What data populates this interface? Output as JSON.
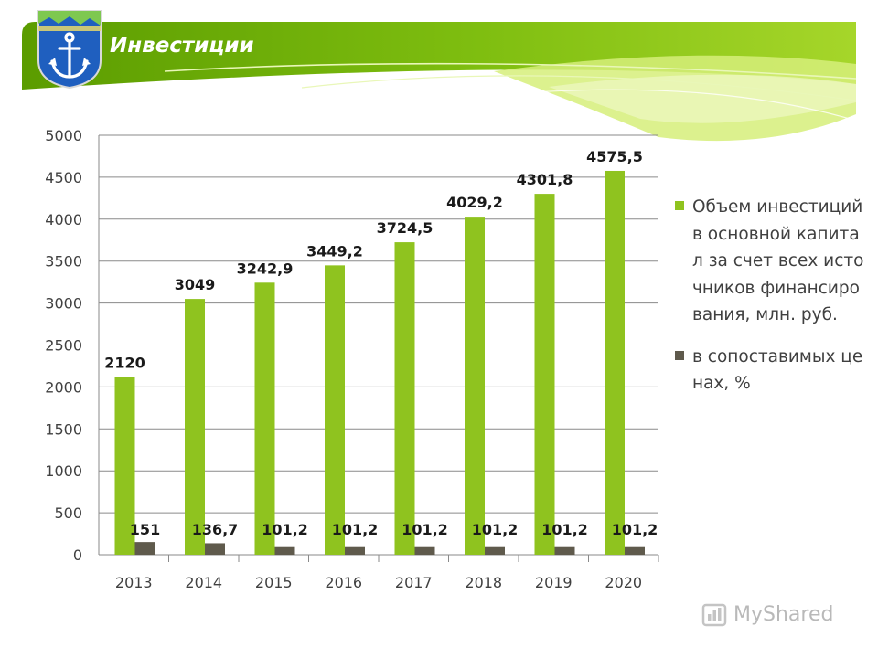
{
  "header": {
    "title": "Инвестиции",
    "colors": {
      "banner_dark": "#5fa000",
      "banner_light": "#b6e33b",
      "title_text": "#ffffff"
    }
  },
  "crest": {
    "icon": "anchor-crest-icon",
    "colors": [
      "#1f5fbf",
      "#7ec850",
      "#ffffff"
    ]
  },
  "chart_data": {
    "type": "bar",
    "categories": [
      "2013",
      "2014",
      "2015",
      "2016",
      "2017",
      "2018",
      "2019",
      "2020"
    ],
    "series": [
      {
        "name": "Объем инвестиций в основной капитал за счет всех источников финансирования, млн. руб.",
        "values": [
          2120,
          3049,
          3242.9,
          3449.2,
          3724.5,
          4029.2,
          4301.8,
          4575.5
        ],
        "labels": [
          "2120",
          "3049",
          "3242,9",
          "3449,2",
          "3724,5",
          "4029,2",
          "4301,8",
          "4575,5"
        ],
        "color": "#8fc31f"
      },
      {
        "name": "в сопоставимых ценах, %",
        "values": [
          151,
          136.7,
          101.2,
          101.2,
          101.2,
          101.2,
          101.2,
          101.2
        ],
        "labels": [
          "151",
          "136,7",
          "101,2",
          "101,2",
          "101,2",
          "101,2",
          "101,2",
          "101,2"
        ],
        "color": "#5f5a4c"
      }
    ],
    "yticks": [
      "0",
      "500",
      "1000",
      "1500",
      "2000",
      "2500",
      "3000",
      "3500",
      "4000",
      "4500",
      "5000"
    ],
    "ylim": [
      0,
      5000
    ],
    "grid": true,
    "legend_position": "right"
  },
  "watermark": {
    "text": "MyShared",
    "icon": "myshared-logo-icon"
  }
}
